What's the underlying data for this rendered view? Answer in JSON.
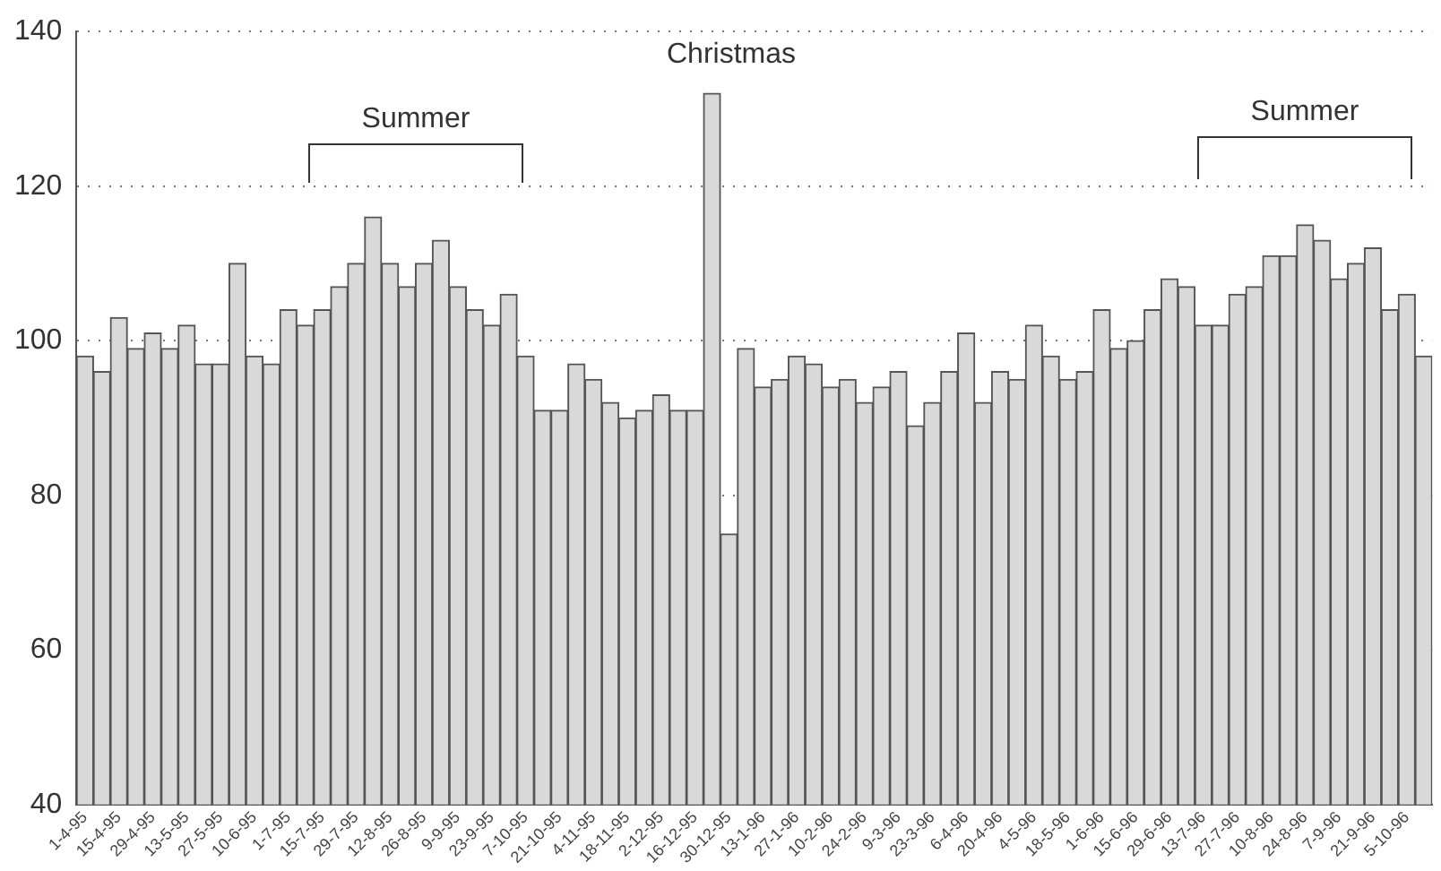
{
  "chart_data": {
    "type": "bar",
    "categories": [
      "1-4-95",
      null,
      "15-4-95",
      null,
      "29-4-95",
      null,
      "13-5-95",
      null,
      "27-5-95",
      null,
      "10-6-95",
      null,
      "1-7-95",
      null,
      "15-7-95",
      null,
      "29-7-95",
      null,
      "12-8-95",
      null,
      "26-8-95",
      null,
      "9-9-95",
      null,
      "23-9-95",
      null,
      "7-10-95",
      null,
      "21-10-95",
      null,
      "4-11-95",
      null,
      "18-11-95",
      null,
      "2-12-95",
      null,
      "16-12-95",
      null,
      "30-12-95",
      null,
      "13-1-96",
      null,
      "27-1-96",
      null,
      "10-2-96",
      null,
      "24-2-96",
      null,
      "9-3-96",
      null,
      "23-3-96",
      null,
      "6-4-96",
      null,
      "20-4-96",
      null,
      "4-5-96",
      null,
      "18-5-96",
      null,
      "1-6-96",
      null,
      "15-6-96",
      null,
      "29-6-96",
      null,
      "13-7-96",
      null,
      "27-7-96",
      null,
      "10-8-96",
      null,
      "24-8-96",
      null,
      "7-9-96",
      null,
      "21-9-96",
      null,
      "5-10-96",
      null
    ],
    "values": [
      98,
      96,
      103,
      99,
      101,
      99,
      102,
      97,
      97,
      110,
      98,
      97,
      104,
      102,
      104,
      107,
      110,
      116,
      110,
      107,
      110,
      113,
      107,
      104,
      102,
      106,
      98,
      91,
      91,
      97,
      95,
      92,
      90,
      91,
      93,
      91,
      91,
      132,
      75,
      99,
      94,
      95,
      98,
      97,
      94,
      95,
      92,
      94,
      96,
      89,
      92,
      96,
      101,
      92,
      96,
      95,
      102,
      98,
      95,
      96,
      104,
      99,
      100,
      104,
      108,
      107,
      102,
      102,
      106,
      107,
      111,
      111,
      115,
      113,
      108,
      110,
      112,
      104,
      106,
      98
    ],
    "color": "#d9d9d9",
    "ylim": [
      40,
      140
    ],
    "yticks": [
      40,
      60,
      80,
      100,
      120,
      140
    ],
    "grid": "y",
    "annotations": [
      "Summer",
      "Christmas",
      "Summer"
    ]
  }
}
